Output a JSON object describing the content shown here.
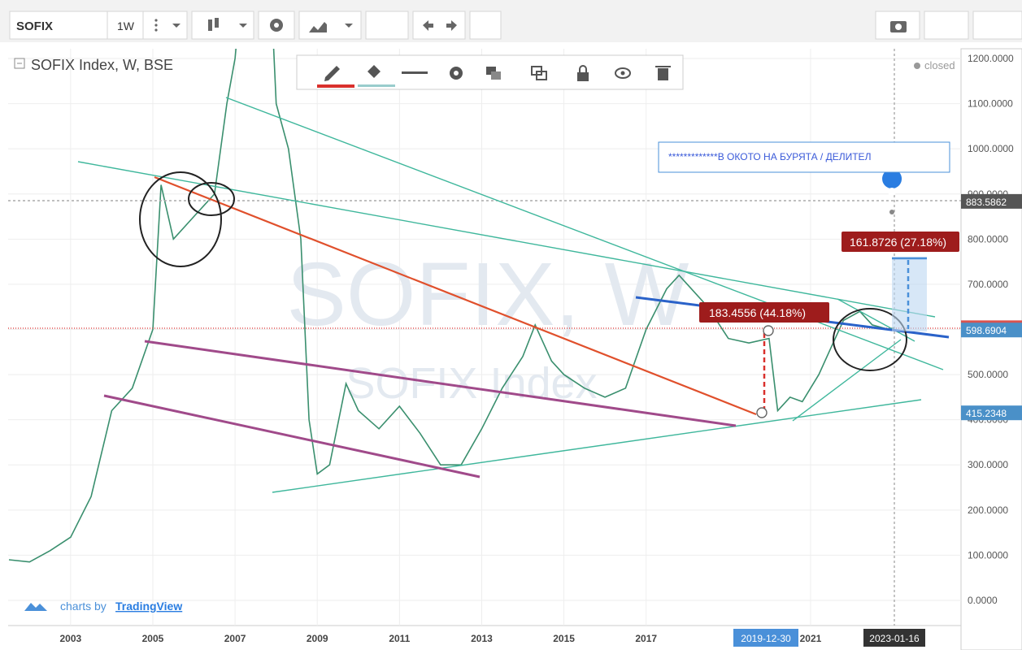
{
  "toolbar": {
    "symbol": "SOFIX",
    "interval": "1W"
  },
  "chart_data": {
    "type": "line",
    "title": "SOFIX Index, W, BSE",
    "status": "closed",
    "watermark": "SOFIX, W",
    "watermark_sub": "SOFIX Index",
    "x": [
      2001.5,
      2002,
      2002.5,
      2003,
      2003.5,
      2004,
      2004.5,
      2005,
      2005.2,
      2005.5,
      2006,
      2006.5,
      2006.8,
      2007,
      2007.5,
      2007.8,
      2008,
      2008.3,
      2008.6,
      2008.8,
      2009,
      2009.3,
      2009.7,
      2010,
      2010.5,
      2011,
      2011.5,
      2012,
      2012.5,
      2013,
      2013.5,
      2014,
      2014.3,
      2014.7,
      2015,
      2015.5,
      2016,
      2016.5,
      2017,
      2017.5,
      2017.8,
      2018,
      2018.5,
      2019,
      2019.5,
      2019.99,
      2020.2,
      2020.5,
      2020.8,
      2021.2,
      2021.5,
      2021.8,
      2022.2,
      2022.5,
      2022.9,
      2023.04
    ],
    "series": [
      {
        "name": "SOFIX",
        "color": "#3a8f6e",
        "values": [
          90,
          85,
          110,
          140,
          230,
          420,
          470,
          600,
          920,
          800,
          850,
          900,
          1100,
          1200,
          1700,
          1500,
          1100,
          1000,
          800,
          400,
          280,
          300,
          480,
          420,
          380,
          430,
          370,
          300,
          300,
          380,
          470,
          540,
          610,
          530,
          500,
          470,
          450,
          470,
          600,
          690,
          720,
          700,
          650,
          580,
          570,
          580,
          420,
          450,
          440,
          500,
          560,
          620,
          640,
          610,
          600,
          604
        ]
      }
    ],
    "xlim": [
      2001.48,
      2024.66
    ],
    "ylim": [
      -55.8,
      1221.6
    ],
    "xticks": [
      2003,
      2005,
      2007,
      2009,
      2011,
      2013,
      2015,
      2017,
      2021
    ],
    "yticks": [
      {
        "value": 0,
        "label": "0.0000"
      },
      {
        "value": 100,
        "label": "100.0000"
      },
      {
        "value": 200,
        "label": "200.0000"
      },
      {
        "value": 300,
        "label": "300.0000"
      },
      {
        "value": 400,
        "label": "400.0000"
      },
      {
        "value": 500,
        "label": "500.0000"
      },
      {
        "value": 600,
        "label": "600.0000"
      },
      {
        "value": 700,
        "label": "700.0000"
      },
      {
        "value": 800,
        "label": "800.0000"
      },
      {
        "value": 900,
        "label": "900.0000"
      },
      {
        "value": 1000,
        "label": "1000.0000"
      },
      {
        "value": 1100,
        "label": "1100.0000"
      },
      {
        "value": 1200,
        "label": "1200.0000"
      }
    ],
    "price_labels": [
      {
        "value": 883.5862,
        "color": "#555555"
      },
      {
        "value": 603.83,
        "color": "#d9534f"
      },
      {
        "value": 598.6904,
        "color": "#4a90c8"
      },
      {
        "value": 415.2348,
        "color": "#4a90c8"
      }
    ],
    "note": "*************В ОКОТО НА БУРЯТА / ДЕЛИТЕЛ",
    "measures": [
      "183.4556 (44.18%)",
      "161.8726 (27.18%)"
    ],
    "date_labels": [
      "2019-12-30",
      "2023-01-16"
    ]
  },
  "footer": {
    "prefix": "charts by",
    "brand": "TradingView"
  }
}
